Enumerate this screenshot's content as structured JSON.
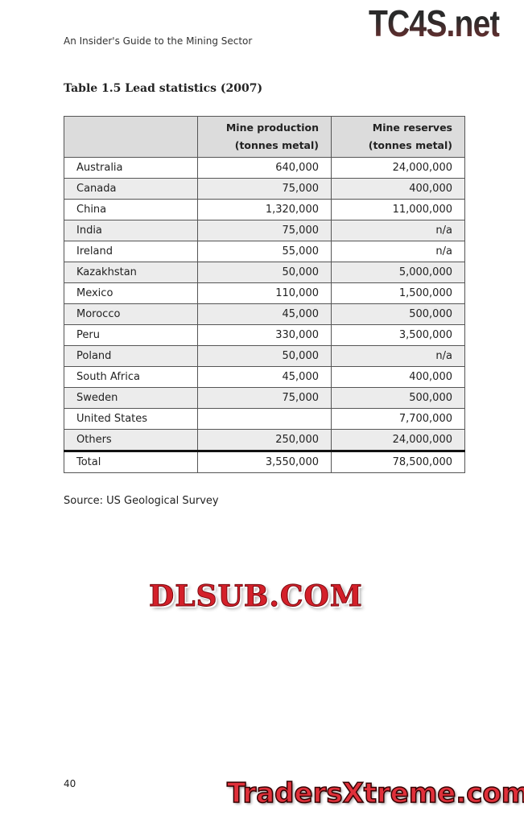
{
  "header": {
    "running_title": "An Insider's Guide to the Mining Sector",
    "watermark_top": "TC4S.net"
  },
  "table": {
    "title": "Table 1.5 Lead statistics (2007)",
    "columns": [
      "",
      "Mine production",
      "Mine reserves"
    ],
    "column_units": [
      "",
      "(tonnes metal)",
      "(tonnes metal)"
    ],
    "rows": [
      [
        "Australia",
        "640,000",
        "24,000,000"
      ],
      [
        "Canada",
        "75,000",
        "400,000"
      ],
      [
        "China",
        "1,320,000",
        "11,000,000"
      ],
      [
        "India",
        "75,000",
        "n/a"
      ],
      [
        "Ireland",
        "55,000",
        "n/a"
      ],
      [
        "Kazakhstan",
        "50,000",
        "5,000,000"
      ],
      [
        "Mexico",
        "110,000",
        "1,500,000"
      ],
      [
        "Morocco",
        "45,000",
        "500,000"
      ],
      [
        "Peru",
        "330,000",
        "3,500,000"
      ],
      [
        "Poland",
        "50,000",
        "n/a"
      ],
      [
        "South Africa",
        "45,000",
        "400,000"
      ],
      [
        "Sweden",
        "75,000",
        "500,000"
      ],
      [
        "United States",
        "",
        "7,700,000"
      ],
      [
        "Others",
        "250,000",
        "24,000,000"
      ]
    ],
    "total": [
      "Total",
      "3,550,000",
      "78,500,000"
    ]
  },
  "source": "Source: US Geological Survey",
  "page_number": "40",
  "watermarks": {
    "middle": "DLSUB.COM",
    "bottom": "TradersXtreme.com"
  }
}
